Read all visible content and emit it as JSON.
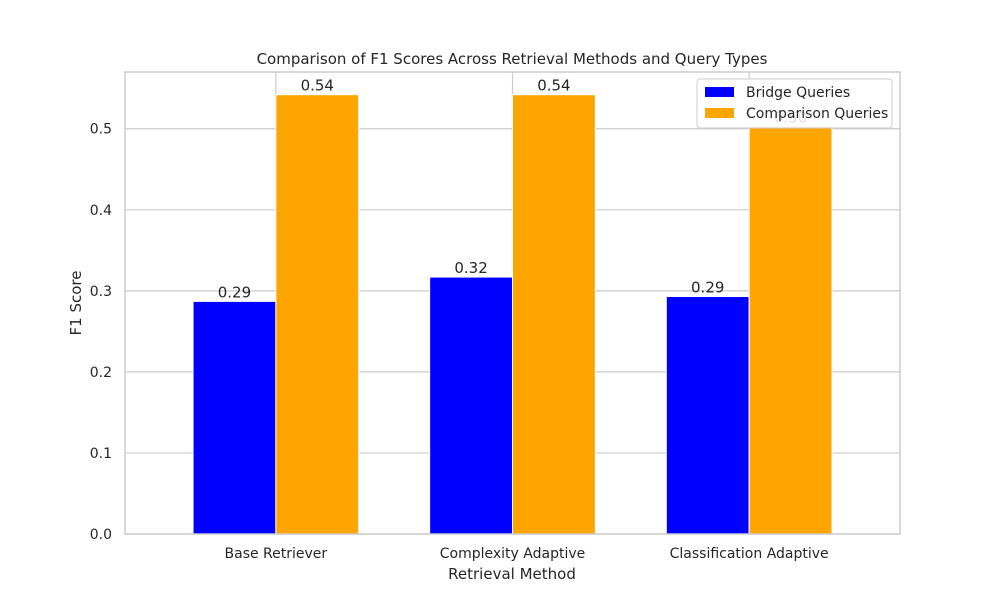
{
  "chart_data": {
    "type": "bar",
    "title": "Comparison of F1 Scores Across Retrieval Methods and Query Types",
    "xlabel": "Retrieval Method",
    "ylabel": "F1 Score",
    "categories": [
      "Base Retriever",
      "Complexity Adaptive",
      "Classification Adaptive"
    ],
    "series": [
      {
        "name": "Bridge Queries",
        "color": "#0000ff",
        "values": [
          0.287,
          0.317,
          0.293
        ],
        "labels": [
          "0.29",
          "0.32",
          "0.29"
        ]
      },
      {
        "name": "Comparison Queries",
        "color": "#ffa500",
        "values": [
          0.542,
          0.542,
          0.503
        ],
        "labels": [
          "0.54",
          "0.54",
          "0.50"
        ]
      }
    ],
    "ylim": [
      0,
      0.57
    ],
    "yticks": [
      "0.0",
      "0.1",
      "0.2",
      "0.3",
      "0.4",
      "0.5"
    ],
    "grid": true,
    "legend_position": "top-right"
  }
}
